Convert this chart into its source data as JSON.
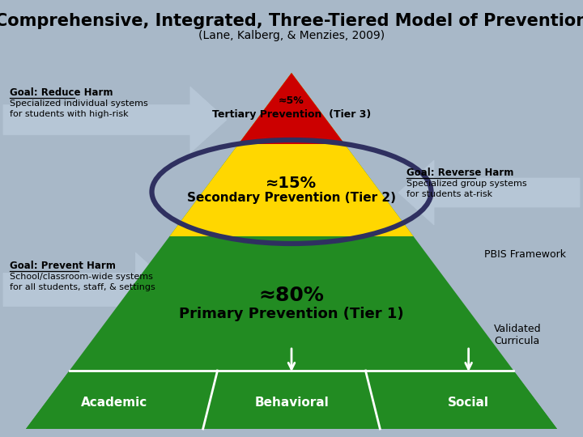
{
  "title_line1": "Comprehensive, Integrated, Three-Tiered Model of Prevention",
  "title_line2": "(Lane, Kalberg, & Menzies, 2009)",
  "bg_color": "#a8b8c8",
  "green_color": "#228B22",
  "yellow_color": "#FFD700",
  "red_color": "#CC0000",
  "tier3_pct": "≈5%",
  "tier3_label": "Tertiary Prevention  (Tier 3)",
  "tier2_pct": "≈15%",
  "tier2_label": "Secondary Prevention (Tier 2)",
  "tier1_pct": "≈80%",
  "tier1_label": "Primary Prevention (Tier 1)",
  "academic_label": "Academic",
  "behavioral_label": "Behavioral",
  "social_label": "Social",
  "left_top_title": "Goal: Reduce Harm",
  "left_top_line1": "Specialized individual systems",
  "left_top_line2": "for students with high-risk",
  "left_bot_title": "Goal: Prevent Harm",
  "left_bot_line1": "School/classroom-wide systems",
  "left_bot_line2": "for all students, staff, & settings",
  "right_top_title": "Goal: Reverse Harm",
  "right_top_line1": "Specialized group systems",
  "right_top_line2": "for students at-risk",
  "right_bot1": "PBIS Framework",
  "right_bot2": "Validated",
  "right_bot3": "Curricula",
  "oval_color": "#2F3060",
  "arrow_color": "#b8c8d8"
}
